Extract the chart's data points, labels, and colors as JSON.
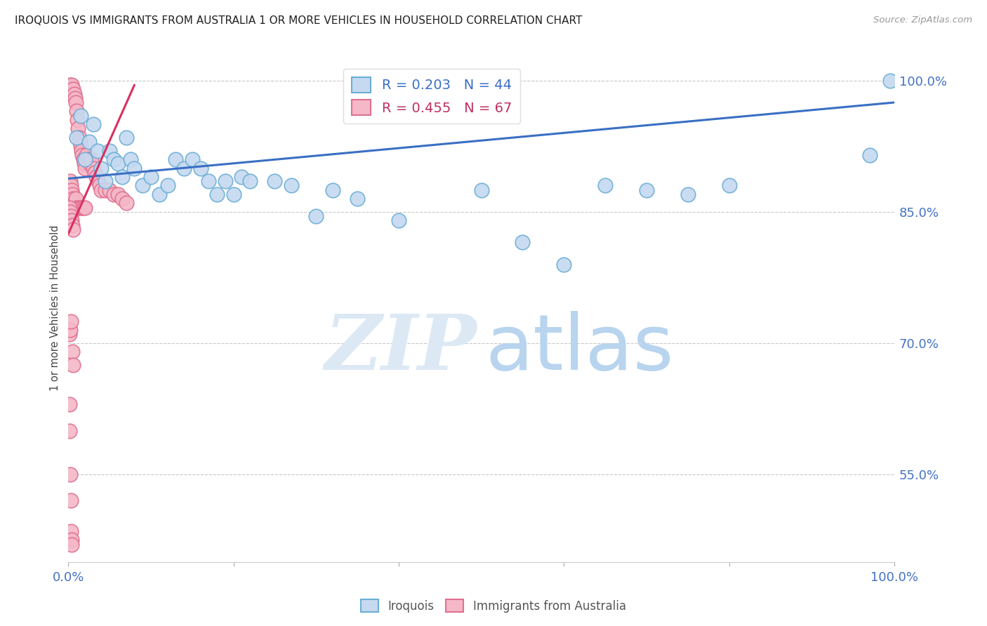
{
  "title": "IROQUOIS VS IMMIGRANTS FROM AUSTRALIA 1 OR MORE VEHICLES IN HOUSEHOLD CORRELATION CHART",
  "source": "Source: ZipAtlas.com",
  "ylabel": "1 or more Vehicles in Household",
  "xlim": [
    0.0,
    100.0
  ],
  "ylim": [
    45.0,
    103.0
  ],
  "ytick_values": [
    55.0,
    70.0,
    85.0,
    100.0
  ],
  "series_blue": {
    "name": "Iroquois",
    "color": "#c5d9f0",
    "edge_color": "#6baed6",
    "R": 0.203,
    "N": 44,
    "x": [
      1.0,
      1.5,
      2.0,
      2.5,
      3.0,
      3.5,
      4.0,
      4.5,
      5.0,
      5.5,
      6.0,
      6.5,
      7.0,
      7.5,
      8.0,
      9.0,
      10.0,
      11.0,
      12.0,
      13.0,
      14.0,
      15.0,
      16.0,
      17.0,
      18.0,
      19.0,
      20.0,
      21.0,
      22.0,
      25.0,
      27.0,
      30.0,
      32.0,
      35.0,
      40.0,
      50.0,
      55.0,
      60.0,
      65.0,
      70.0,
      75.0,
      80.0,
      97.0,
      99.5
    ],
    "y": [
      93.5,
      96.0,
      91.0,
      93.0,
      95.0,
      92.0,
      90.0,
      88.5,
      92.0,
      91.0,
      90.5,
      89.0,
      93.5,
      91.0,
      90.0,
      88.0,
      89.0,
      87.0,
      88.0,
      91.0,
      90.0,
      91.0,
      90.0,
      88.5,
      87.0,
      88.5,
      87.0,
      89.0,
      88.5,
      88.5,
      88.0,
      84.5,
      87.5,
      86.5,
      84.0,
      87.5,
      81.5,
      79.0,
      88.0,
      87.5,
      87.0,
      88.0,
      91.5,
      100.0
    ]
  },
  "series_pink": {
    "name": "Immigrants from Australia",
    "color": "#f4b8c8",
    "edge_color": "#e07090",
    "R": 0.455,
    "N": 67,
    "x": [
      0.2,
      0.3,
      0.4,
      0.5,
      0.6,
      0.7,
      0.8,
      0.9,
      1.0,
      1.1,
      1.2,
      1.3,
      1.4,
      1.5,
      1.6,
      1.7,
      1.8,
      1.9,
      2.0,
      2.2,
      2.4,
      2.6,
      2.8,
      3.0,
      3.2,
      3.4,
      3.6,
      3.8,
      4.0,
      4.5,
      5.0,
      5.5,
      6.0,
      6.5,
      7.0,
      0.2,
      0.3,
      0.4,
      0.5,
      0.6,
      0.7,
      0.8,
      0.9,
      1.0,
      1.2,
      1.4,
      1.6,
      1.8,
      2.0,
      0.1,
      0.2,
      0.3,
      0.4,
      0.5,
      0.6,
      0.15,
      0.25,
      0.35,
      0.45,
      0.55,
      0.12,
      0.18,
      0.22,
      0.28,
      0.32,
      0.38,
      0.42
    ],
    "y": [
      99.5,
      99.0,
      99.5,
      98.5,
      99.0,
      98.5,
      98.0,
      97.5,
      96.5,
      95.5,
      94.5,
      93.5,
      93.0,
      92.5,
      92.0,
      91.5,
      91.0,
      90.5,
      90.0,
      91.5,
      91.0,
      90.5,
      91.0,
      90.0,
      89.5,
      89.0,
      88.5,
      88.0,
      87.5,
      87.5,
      87.5,
      87.0,
      87.0,
      86.5,
      86.0,
      88.5,
      88.0,
      87.5,
      87.0,
      86.5,
      86.0,
      85.5,
      86.5,
      85.5,
      85.5,
      85.5,
      85.5,
      85.5,
      85.5,
      85.5,
      85.0,
      84.5,
      84.0,
      83.5,
      83.0,
      71.0,
      71.5,
      72.5,
      69.0,
      67.5,
      63.0,
      60.0,
      55.0,
      52.0,
      48.5,
      47.5,
      47.0
    ]
  },
  "blue_line": {
    "x_start": 0.0,
    "x_end": 100.0,
    "y_start": 88.8,
    "y_end": 97.5
  },
  "pink_line": {
    "x_start": 0.0,
    "x_end": 8.0,
    "y_start": 82.5,
    "y_end": 99.5
  },
  "background_color": "#ffffff",
  "grid_color": "#c8c8c8",
  "title_color": "#222222",
  "watermark_zip_color": "#dce9f5",
  "watermark_atlas_color": "#b8d4ee"
}
